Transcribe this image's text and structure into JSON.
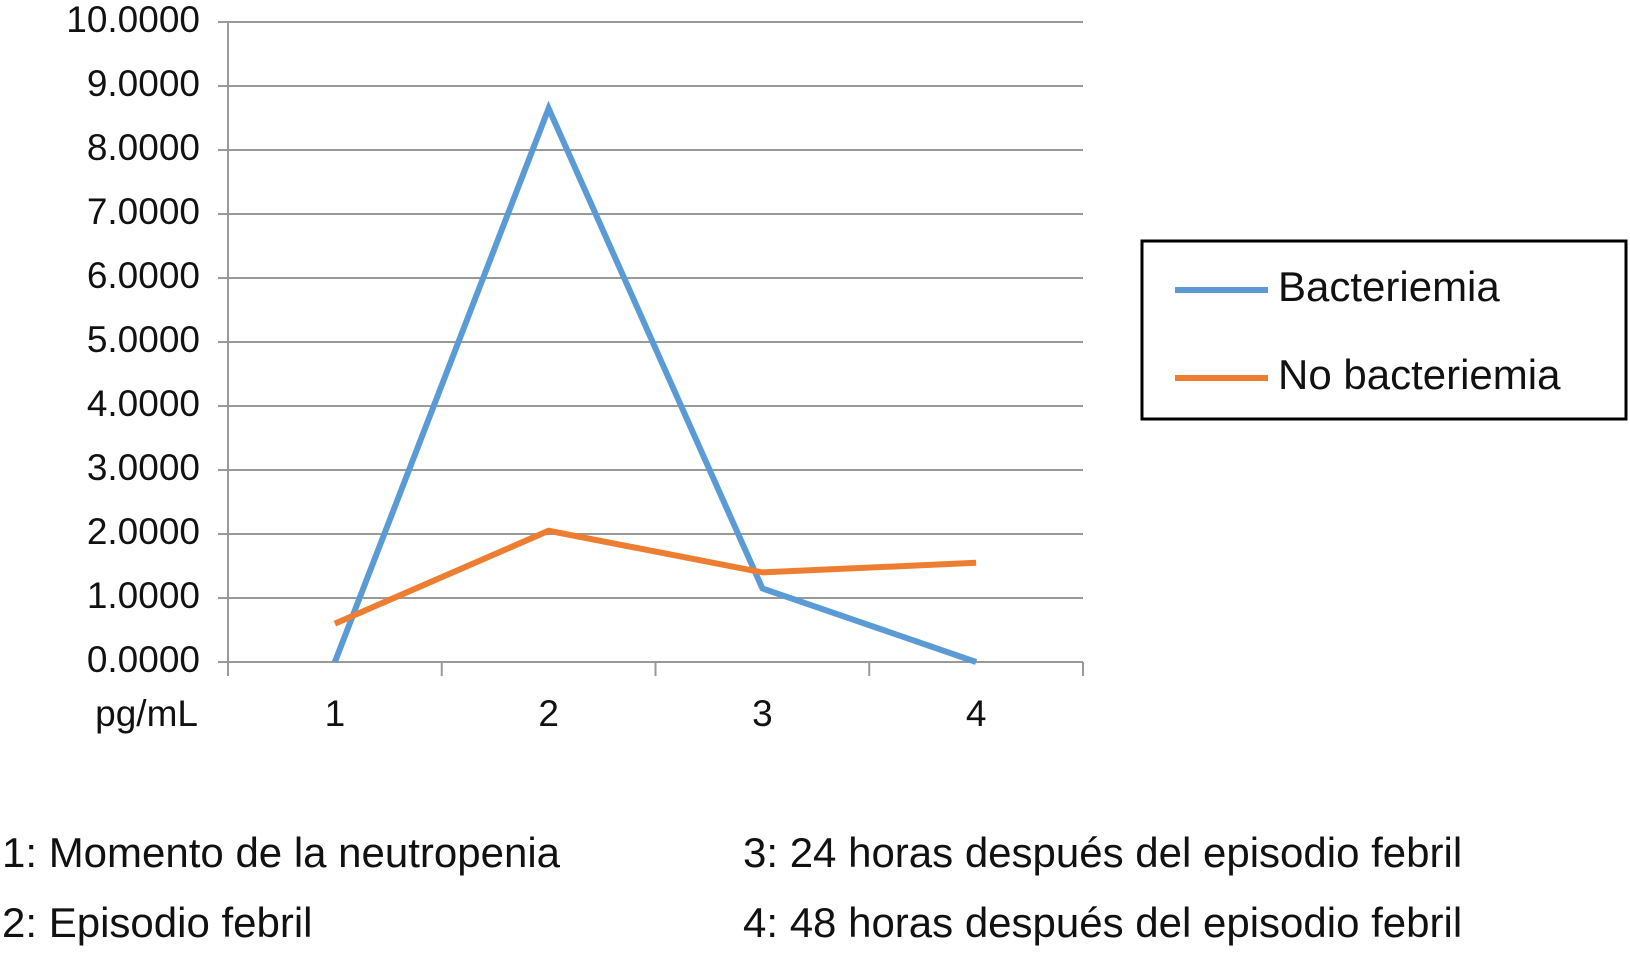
{
  "chart_data": {
    "type": "line",
    "x_label": "pg/mL",
    "categories": [
      "1",
      "2",
      "3",
      "4"
    ],
    "series": [
      {
        "name": "Bacteriemia",
        "color": "#5b9bd5",
        "values": [
          0,
          8.65,
          1.15,
          0
        ]
      },
      {
        "name": "No bacteriemia",
        "color": "#ed7d31",
        "values": [
          0.6,
          2.05,
          1.4,
          1.55
        ]
      }
    ],
    "ylim": [
      0,
      10
    ],
    "yticks": [
      {
        "value": 0,
        "label": "0.0000"
      },
      {
        "value": 1,
        "label": "1.0000"
      },
      {
        "value": 2,
        "label": "2.0000"
      },
      {
        "value": 3,
        "label": "3.0000"
      },
      {
        "value": 4,
        "label": "4.0000"
      },
      {
        "value": 5,
        "label": "5.0000"
      },
      {
        "value": 6,
        "label": "6.0000"
      },
      {
        "value": 7,
        "label": "7.0000"
      },
      {
        "value": 8,
        "label": "8.0000"
      },
      {
        "value": 9,
        "label": "9.0000"
      },
      {
        "value": 10,
        "label": "10.0000"
      }
    ],
    "grid": true,
    "legend": "right",
    "notes": [
      "1: Momento de la neutropenia",
      "2: Episodio febril",
      "3: 24 horas después del episodio febril",
      "4: 48 horas después del episodio febril"
    ]
  }
}
